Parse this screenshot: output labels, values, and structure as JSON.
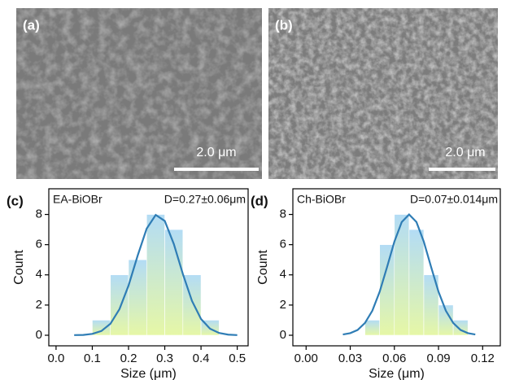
{
  "panels": [
    {
      "label": "(a)",
      "scale_bar": "2.0 μm"
    },
    {
      "label": "(b)",
      "scale_bar": "2.0 μm"
    }
  ],
  "chart_data": [
    {
      "type": "histogram",
      "label": "(c)",
      "sample": "EA-BiOBr",
      "annotation": "D=0.27±0.06μm",
      "x_label": "Size (μm)",
      "y_label": "Count",
      "bins": [
        0.1,
        0.15,
        0.2,
        0.25,
        0.3,
        0.35,
        0.4,
        0.45
      ],
      "values": [
        1,
        4,
        5,
        8,
        7,
        4,
        1
      ],
      "bar_colors": [
        "#b3dcf5",
        "#e6f7a6"
      ],
      "fit": {
        "color": "#2f7db5",
        "x": [
          0.05,
          0.075,
          0.1,
          0.125,
          0.15,
          0.175,
          0.2,
          0.225,
          0.25,
          0.275,
          0.3,
          0.325,
          0.35,
          0.375,
          0.4,
          0.425,
          0.45,
          0.475,
          0.5
        ],
        "values": [
          0.01,
          0.02,
          0.09,
          0.28,
          0.76,
          1.73,
          3.29,
          5.26,
          7.06,
          7.97,
          7.57,
          6.04,
          4.05,
          2.28,
          1.08,
          0.43,
          0.15,
          0.04,
          0.01
        ]
      },
      "xlim": [
        -0.02,
        0.53
      ],
      "ylim": [
        -0.7,
        9.7
      ],
      "xticks": [
        {
          "value": 0,
          "label": "0.0"
        },
        0.1,
        0.2,
        0.3,
        0.4,
        0.5
      ],
      "yticks": [
        0,
        2,
        4,
        6,
        8
      ]
    },
    {
      "type": "histogram",
      "label": "(d)",
      "sample": "Ch-BiOBr",
      "annotation": "D=0.07±0.014μm",
      "x_label": "Size (μm)",
      "y_label": "Count",
      "bins": [
        0.04,
        0.05,
        0.06,
        0.07,
        0.08,
        0.09,
        0.1,
        0.11
      ],
      "values": [
        1,
        6,
        8,
        7,
        4,
        2,
        1
      ],
      "bar_colors": [
        "#b3dcf5",
        "#e6f7a6"
      ],
      "fit": {
        "color": "#2f7db5",
        "x": [
          0.025,
          0.03,
          0.035,
          0.04,
          0.045,
          0.05,
          0.055,
          0.06,
          0.065,
          0.07,
          0.075,
          0.08,
          0.085,
          0.09,
          0.095,
          0.1,
          0.105,
          0.11,
          0.115
        ],
        "values": [
          0.05,
          0.14,
          0.35,
          0.81,
          1.62,
          2.88,
          4.51,
          6.2,
          7.5,
          8,
          7.5,
          6.2,
          4.51,
          2.88,
          1.62,
          0.81,
          0.35,
          0.14,
          0.05
        ]
      },
      "xlim": [
        -0.009,
        0.132
      ],
      "ylim": [
        -0.7,
        9.7
      ],
      "xticks": [
        {
          "value": 0,
          "label": "0.00"
        },
        0.03,
        0.06,
        0.09,
        0.12
      ],
      "yticks": [
        0,
        2,
        4,
        6,
        8
      ]
    }
  ]
}
